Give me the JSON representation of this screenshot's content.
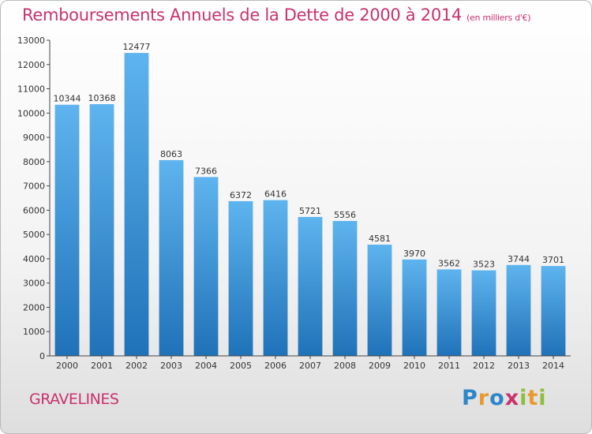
{
  "title": "Remboursements Annuels de la Dette de 2000 à 2014",
  "subtitle": "(en milliers d'€)",
  "place": "GRAVELINES",
  "logo": "Proxiti",
  "colors": {
    "title": "#c8326e",
    "bar_top": "#5eb4ee",
    "bar_bottom": "#1f72b8"
  },
  "chart_data": {
    "type": "bar",
    "title": "Remboursements Annuels de la Dette de 2000 à 2014",
    "xlabel": "",
    "ylabel": "",
    "categories": [
      "2000",
      "2001",
      "2002",
      "2003",
      "2004",
      "2005",
      "2006",
      "2007",
      "2008",
      "2009",
      "2010",
      "2011",
      "2012",
      "2013",
      "2014"
    ],
    "values": [
      10344,
      10368,
      12477,
      8063,
      7366,
      6372,
      6416,
      5721,
      5556,
      4581,
      3970,
      3562,
      3523,
      3744,
      3701
    ],
    "ylim": [
      0,
      13000
    ],
    "yticks": [
      0,
      1000,
      2000,
      3000,
      4000,
      5000,
      6000,
      7000,
      8000,
      9000,
      10000,
      11000,
      12000,
      13000
    ],
    "grid": false,
    "legend": "none"
  }
}
